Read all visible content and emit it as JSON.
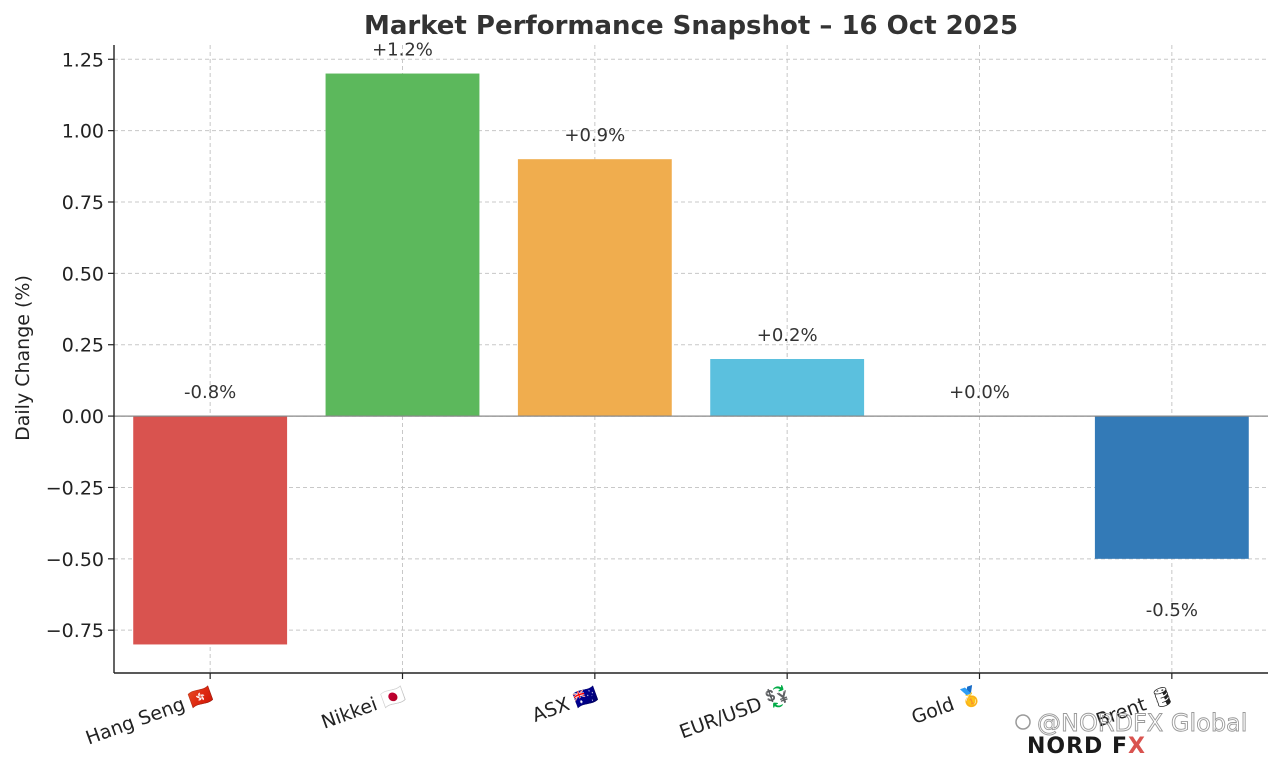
{
  "chart_data": {
    "type": "bar",
    "title": "Market Performance Snapshot – 16 Oct 2025",
    "xlabel": "",
    "ylabel": "Daily Change (%)",
    "ylim": [
      -0.9,
      1.3
    ],
    "yticks": [
      -0.75,
      -0.5,
      -0.25,
      0.0,
      0.25,
      0.5,
      0.75,
      1.0,
      1.25
    ],
    "ytick_labels": [
      "−0.75",
      "−0.50",
      "−0.25",
      "0.00",
      "0.25",
      "0.50",
      "0.75",
      "1.00",
      "1.25"
    ],
    "grid": true,
    "categories": [
      "Hang Seng 🇭🇰",
      "Nikkei 🇯🇵",
      "ASX 🇦🇺",
      "EUR/USD 💱",
      "Gold 🥇",
      "Brent 🛢"
    ],
    "values": [
      -0.8,
      1.2,
      0.9,
      0.2,
      0.0,
      -0.5
    ],
    "data_labels": [
      "-0.8%",
      "+1.2%",
      "+0.9%",
      "+0.2%",
      "+0.0%",
      "-0.5%"
    ],
    "colors": [
      "#d9534f",
      "#5cb85c",
      "#f0ad4e",
      "#5bc0de",
      "#999999",
      "#337ab7"
    ]
  },
  "watermark": {
    "handle": "@NORDFX Global",
    "logo": "NORD FX"
  }
}
